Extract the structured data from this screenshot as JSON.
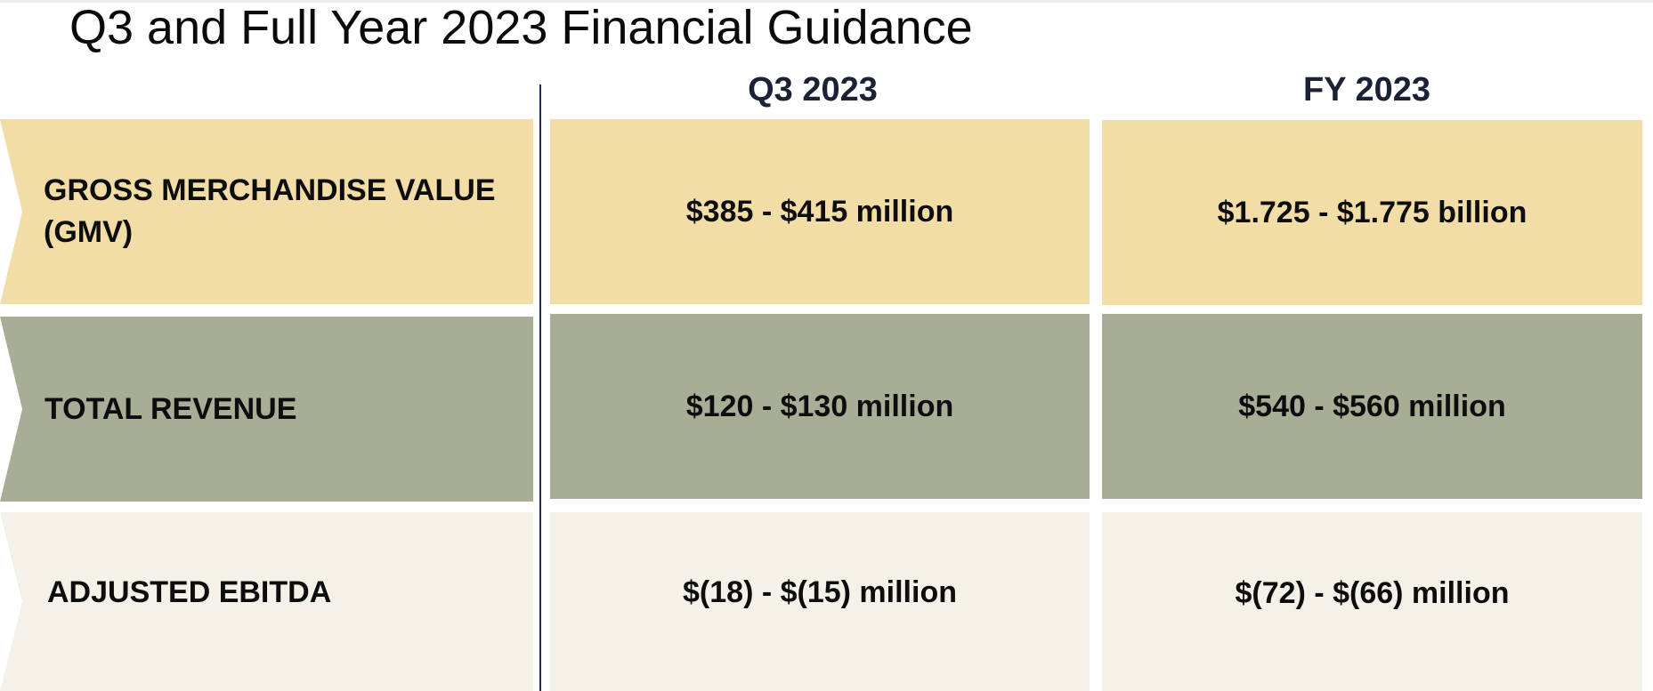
{
  "title": "Q3 and Full Year 2023 Financial Guidance",
  "columns": [
    "Q3 2023",
    "FY 2023"
  ],
  "rows": [
    {
      "label_line1": "GROSS MERCHANDISE VALUE",
      "label_line2": "(GMV)",
      "q3": "$385 - $415 million",
      "fy": "$1.725 - $1.775 billion"
    },
    {
      "label_line1": "TOTAL REVENUE",
      "q3": "$120 - $130 million",
      "fy": "$540 - $560 million"
    },
    {
      "label_line1": "ADJUSTED EBITDA",
      "q3": "$(18) - $(15) million",
      "fy": "$(72) - $(66) million"
    }
  ],
  "colors": {
    "gmv_fill": "#f2dda6",
    "revenue_fill": "#a8ad96",
    "ebitda_fill": "#f4f1e8",
    "header_text": "#1b2236",
    "divider": "#1e2a55"
  }
}
